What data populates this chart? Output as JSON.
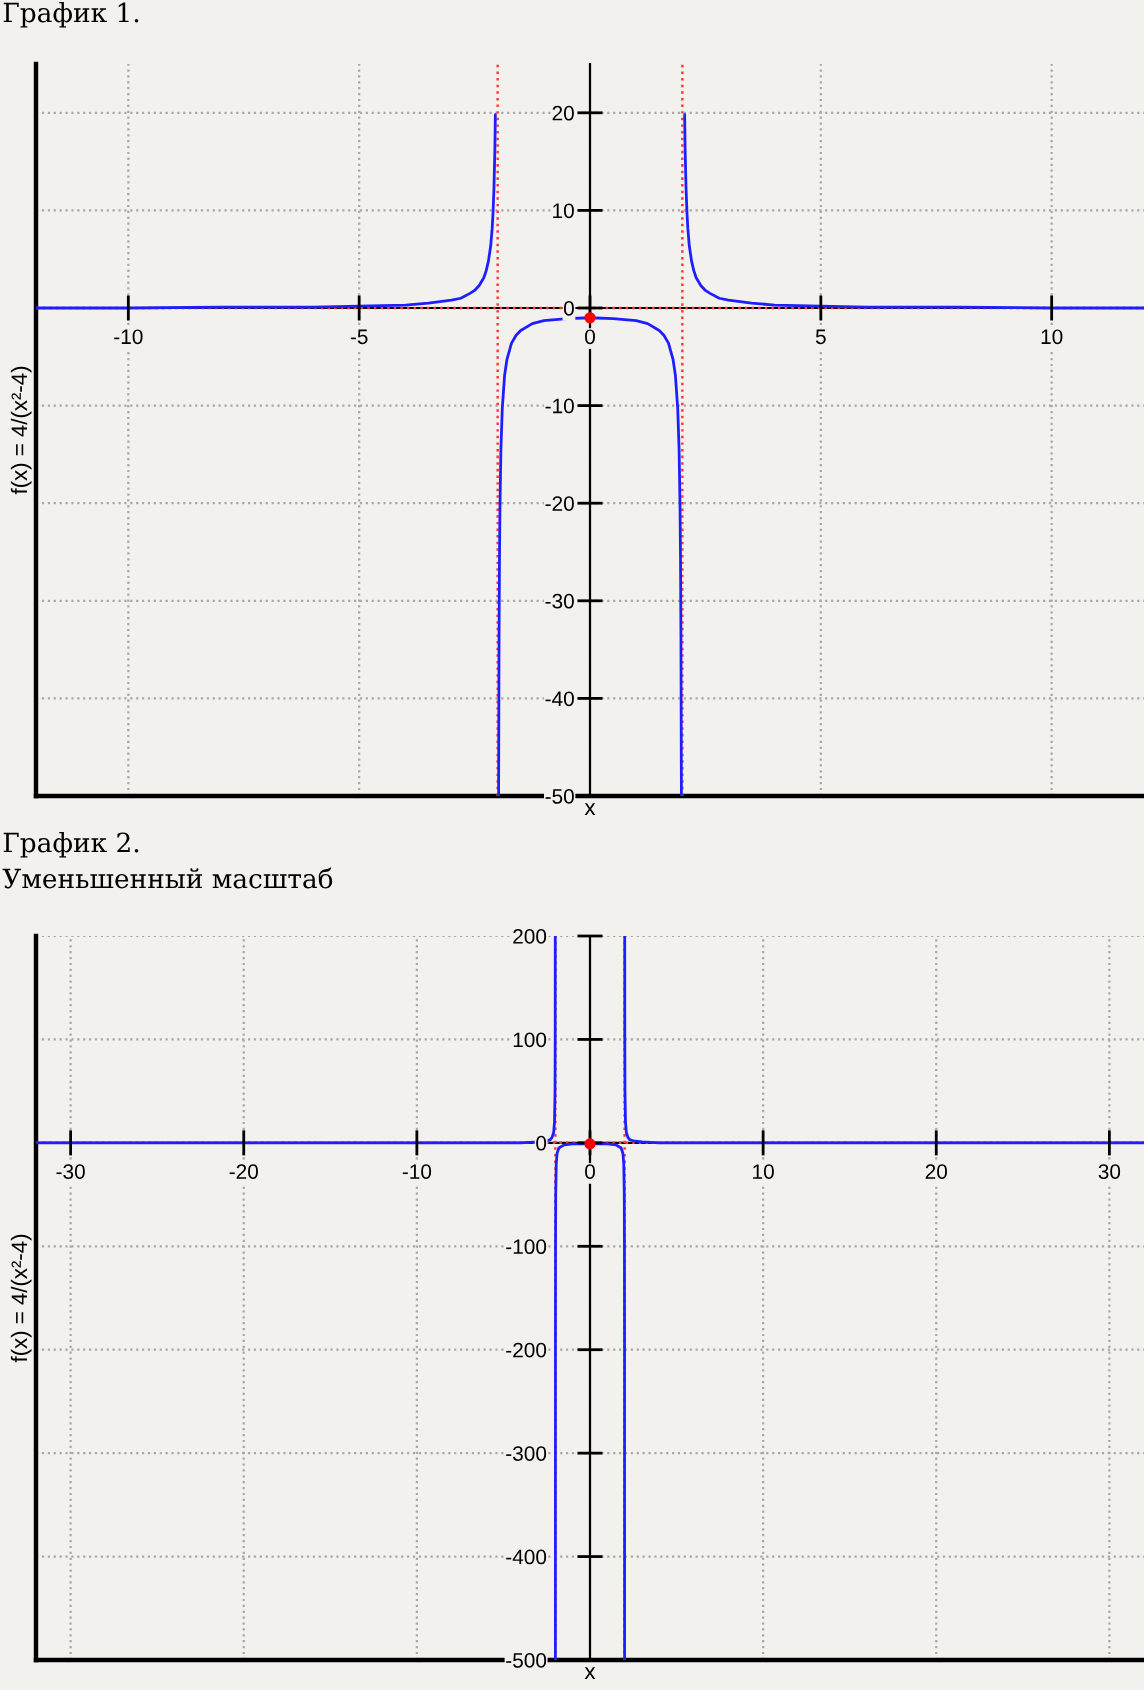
{
  "chart_data": [
    {
      "type": "line",
      "title": "График 1.",
      "xlabel": "x",
      "ylabel": "f(x) = 4/(x²-4)",
      "xlim": [
        -12,
        12
      ],
      "ylim": [
        -50,
        25
      ],
      "xticks": [
        -10,
        -5,
        0,
        5,
        10
      ],
      "yticks": [
        -50,
        -40,
        -30,
        -20,
        -10,
        0,
        10,
        20
      ],
      "grid": true,
      "ref_lines": [
        {
          "axis": "x",
          "value": -2,
          "color": "#ff3b3b",
          "line_style": "dotted"
        },
        {
          "axis": "x",
          "value": 2,
          "color": "#ff3b3b",
          "line_style": "dotted"
        },
        {
          "axis": "y",
          "value": 0,
          "color": "#ff3b3b",
          "line_style": "dotted"
        }
      ],
      "series": [
        {
          "color": "#1e1eff",
          "x": [
            -12,
            -10,
            -8,
            -6,
            -5,
            -4,
            -3.5,
            -3,
            -2.8,
            -2.6,
            -2.5,
            -2.4,
            -2.3,
            -2.25,
            -2.2,
            -2.15,
            -2.12,
            -2.1,
            -2.08,
            -2.06,
            -2.05,
            -2,
            -1.98,
            -1.97,
            -1.96,
            -1.95,
            -1.93,
            -1.9,
            -1.85,
            -1.8,
            -1.7,
            -1.6,
            -1.5,
            -1.25,
            -1,
            -0.5,
            0,
            0.5,
            1,
            1.25,
            1.5,
            1.6,
            1.7,
            1.8,
            1.85,
            1.9,
            1.93,
            1.95,
            1.96,
            1.97,
            1.98,
            2,
            2.05,
            2.06,
            2.08,
            2.1,
            2.12,
            2.15,
            2.2,
            2.25,
            2.3,
            2.4,
            2.5,
            2.6,
            2.8,
            3,
            3.5,
            4,
            5,
            6,
            8,
            10,
            12
          ],
          "values": [
            0,
            0,
            0.1,
            0.1,
            0.2,
            0.3,
            0.5,
            0.8,
            1,
            1.5,
            1.8,
            2.3,
            3.1,
            3.8,
            4.8,
            6.4,
            8.1,
            9.8,
            12.3,
            16.4,
            19.8,
            null,
            -50,
            -33.6,
            -25.3,
            -20.3,
            -14.5,
            -10.3,
            -6.9,
            -5.3,
            -3.6,
            -2.8,
            -2.3,
            -1.6,
            -1.3,
            -1.1,
            -1,
            -1.1,
            -1.3,
            -1.6,
            -2.3,
            -2.8,
            -3.6,
            -5.3,
            -6.9,
            -10.3,
            -14.5,
            -20.3,
            -25.3,
            -33.6,
            -50,
            null,
            19.8,
            16.4,
            12.3,
            9.8,
            8.1,
            6.4,
            4.8,
            3.8,
            3.1,
            2.3,
            1.8,
            1.5,
            1,
            0.8,
            0.5,
            0.3,
            0.2,
            0.1,
            0.1,
            0,
            0
          ]
        },
        {
          "type": "scatter",
          "color": "#ff0000",
          "marker": "circle",
          "x": [
            0
          ],
          "values": [
            -1
          ]
        }
      ]
    },
    {
      "type": "line",
      "title": "График 2.",
      "subtitle": "Уменьшенный масштаб",
      "xlabel": "x",
      "ylabel": "f(x) = 4/(x²-4)",
      "xlim": [
        -32,
        32
      ],
      "ylim": [
        -500,
        200
      ],
      "xticks": [
        -30,
        -20,
        -10,
        0,
        10,
        20,
        30
      ],
      "yticks": [
        -500,
        -400,
        -300,
        -200,
        -100,
        0,
        100,
        200
      ],
      "grid": true,
      "ref_lines": [
        {
          "axis": "x",
          "value": -2,
          "color": "#ff3b3b",
          "line_style": "dotted"
        },
        {
          "axis": "x",
          "value": 2,
          "color": "#ff3b3b",
          "line_style": "dotted"
        },
        {
          "axis": "y",
          "value": 0,
          "color": "#ff3b3b",
          "line_style": "dotted"
        }
      ],
      "series": [
        {
          "color": "#1e1eff",
          "x": [
            -32,
            -20,
            -10,
            -5,
            -4,
            -3,
            -2.5,
            -2.3,
            -2.2,
            -2.1,
            -2.05,
            -2.02,
            -2.01,
            -2.005,
            -2,
            -1.998,
            -1.995,
            -1.99,
            -1.98,
            -1.95,
            -1.9,
            -1.8,
            -1.5,
            -1,
            0,
            1,
            1.5,
            1.8,
            1.9,
            1.95,
            1.98,
            1.99,
            1.995,
            1.998,
            2,
            2.005,
            2.01,
            2.02,
            2.05,
            2.1,
            2.2,
            2.3,
            2.5,
            3,
            4,
            5,
            10,
            20,
            32
          ],
          "values": [
            0,
            0,
            0,
            0,
            0,
            1,
            2,
            3,
            5,
            10,
            20,
            50,
            100,
            200,
            null,
            -500,
            -200,
            -100,
            -50,
            -20,
            -10,
            -5,
            -2,
            -1,
            -1,
            -1,
            -2,
            -5,
            -10,
            -20,
            -50,
            -100,
            -200,
            -500,
            null,
            200,
            100,
            50,
            20,
            10,
            5,
            3,
            2,
            1,
            0,
            0,
            0,
            0,
            0
          ]
        },
        {
          "type": "scatter",
          "color": "#ff0000",
          "marker": "circle",
          "x": [
            0
          ],
          "values": [
            -1
          ]
        }
      ]
    }
  ]
}
